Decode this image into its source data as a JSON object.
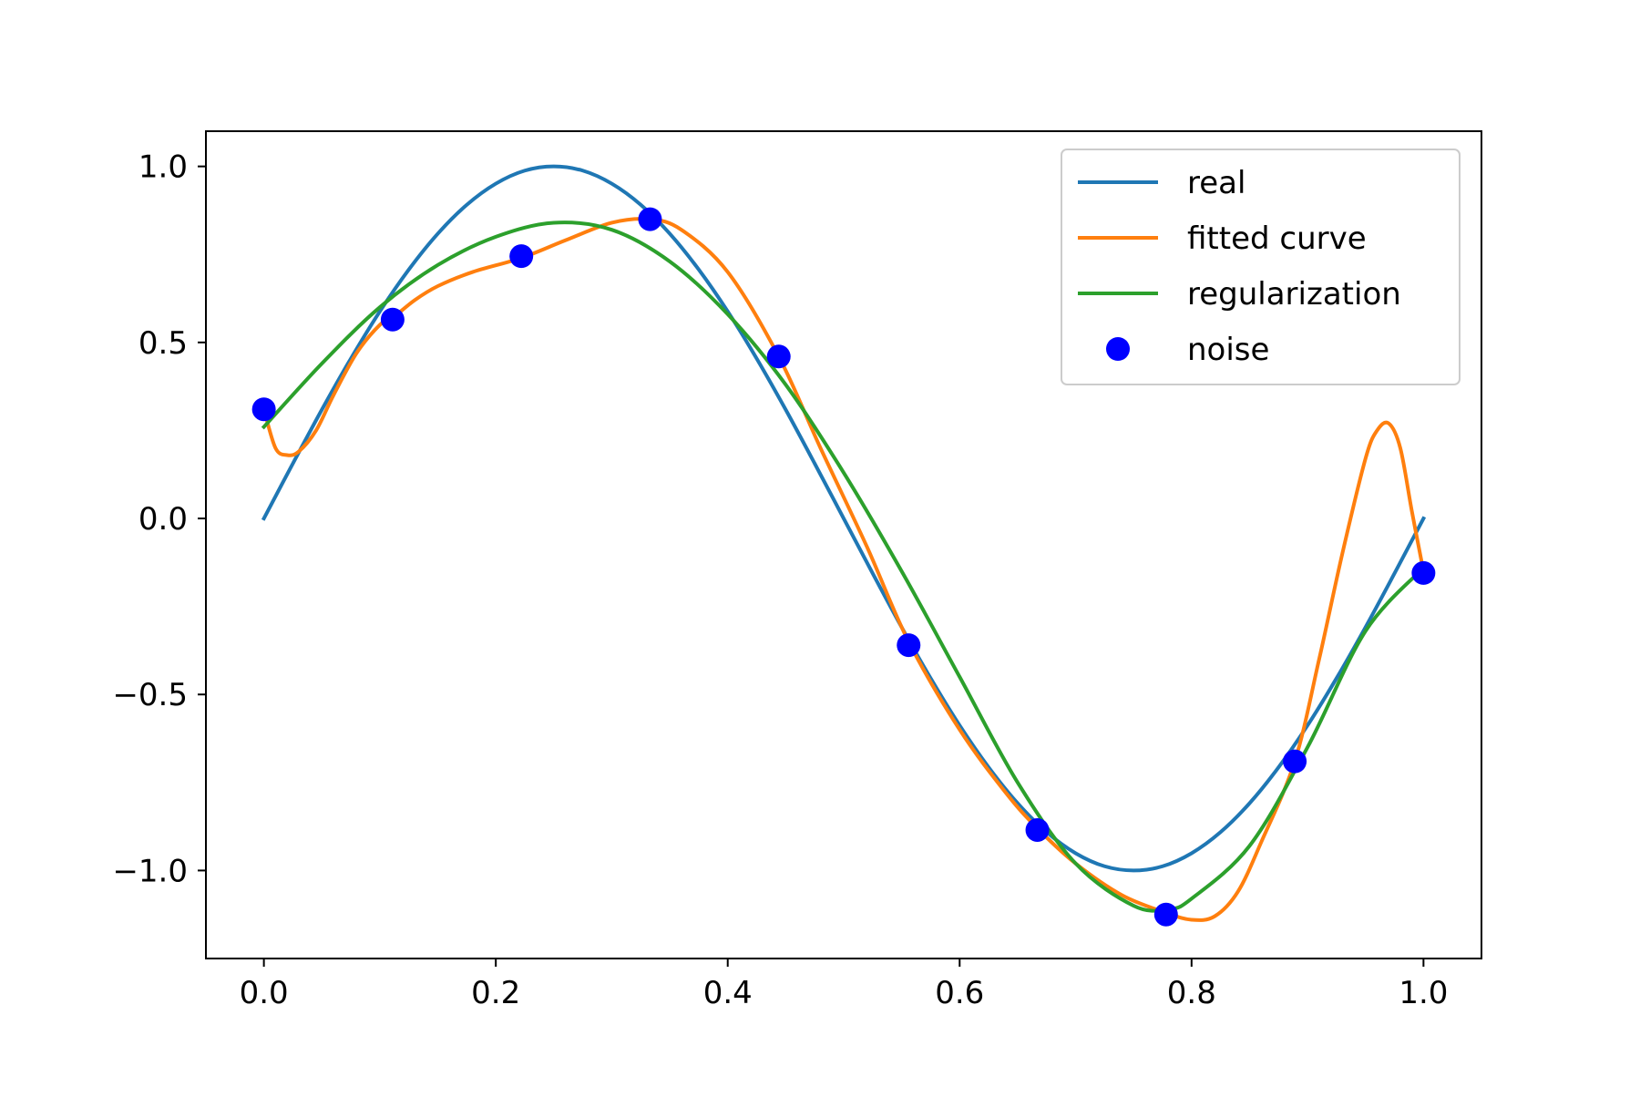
{
  "chart_data": {
    "type": "line",
    "title": "",
    "xlabel": "",
    "ylabel": "",
    "xlim": [
      -0.05,
      1.05
    ],
    "ylim": [
      -1.25,
      1.1
    ],
    "xticks": [
      {
        "value": 0.0,
        "label": "0.0"
      },
      {
        "value": 0.2,
        "label": "0.2"
      },
      {
        "value": 0.4,
        "label": "0.4"
      },
      {
        "value": 0.6,
        "label": "0.6"
      },
      {
        "value": 0.8,
        "label": "0.8"
      },
      {
        "value": 1.0,
        "label": "1.0"
      }
    ],
    "yticks": [
      {
        "value": 1.0,
        "label": "1.0"
      },
      {
        "value": 0.5,
        "label": "0.5"
      },
      {
        "value": 0.0,
        "label": "0.0"
      },
      {
        "value": -0.5,
        "label": "−0.5"
      },
      {
        "value": -1.0,
        "label": "−1.0"
      }
    ],
    "grid": false,
    "legend_position": "top-right",
    "series": [
      {
        "name": "real",
        "kind": "line",
        "color": "#1f77b4",
        "x": [
          0.0,
          0.025,
          0.05,
          0.075,
          0.1,
          0.125,
          0.15,
          0.175,
          0.2,
          0.225,
          0.25,
          0.275,
          0.3,
          0.325,
          0.35,
          0.375,
          0.4,
          0.425,
          0.45,
          0.475,
          0.5,
          0.525,
          0.55,
          0.575,
          0.6,
          0.625,
          0.65,
          0.675,
          0.7,
          0.725,
          0.75,
          0.775,
          0.8,
          0.825,
          0.85,
          0.875,
          0.9,
          0.925,
          0.95,
          0.975,
          1.0
        ],
        "y": [
          0.0,
          0.156,
          0.309,
          0.454,
          0.588,
          0.707,
          0.809,
          0.891,
          0.951,
          0.988,
          1.0,
          0.988,
          0.951,
          0.891,
          0.809,
          0.707,
          0.588,
          0.454,
          0.309,
          0.156,
          0.0,
          -0.156,
          -0.309,
          -0.454,
          -0.588,
          -0.707,
          -0.809,
          -0.891,
          -0.951,
          -0.988,
          -1.0,
          -0.988,
          -0.951,
          -0.891,
          -0.809,
          -0.707,
          -0.588,
          -0.454,
          -0.309,
          -0.156,
          0.0
        ]
      },
      {
        "name": "fitted curve",
        "kind": "line",
        "color": "#ff7f0e",
        "x": [
          0.0,
          0.01,
          0.02,
          0.03,
          0.045,
          0.06,
          0.08,
          0.1,
          0.111,
          0.13,
          0.15,
          0.18,
          0.222,
          0.26,
          0.3,
          0.333,
          0.36,
          0.4,
          0.444,
          0.48,
          0.52,
          0.556,
          0.6,
          0.64,
          0.667,
          0.7,
          0.74,
          0.778,
          0.8,
          0.82,
          0.84,
          0.86,
          0.889,
          0.91,
          0.93,
          0.95,
          0.96,
          0.97,
          0.98,
          0.99,
          1.0
        ],
        "y": [
          0.31,
          0.2,
          0.18,
          0.19,
          0.25,
          0.35,
          0.47,
          0.55,
          0.57,
          0.62,
          0.66,
          0.7,
          0.74,
          0.79,
          0.84,
          0.85,
          0.82,
          0.7,
          0.46,
          0.2,
          -0.08,
          -0.35,
          -0.6,
          -0.78,
          -0.88,
          -0.98,
          -1.07,
          -1.12,
          -1.14,
          -1.13,
          -1.06,
          -0.92,
          -0.69,
          -0.4,
          -0.1,
          0.17,
          0.25,
          0.27,
          0.2,
          0.02,
          -0.15
        ]
      },
      {
        "name": "regularization",
        "kind": "line",
        "color": "#2ca02c",
        "x": [
          0.0,
          0.05,
          0.1,
          0.15,
          0.2,
          0.25,
          0.3,
          0.35,
          0.4,
          0.45,
          0.5,
          0.55,
          0.6,
          0.65,
          0.7,
          0.75,
          0.78,
          0.8,
          0.85,
          0.9,
          0.95,
          1.0
        ],
        "y": [
          0.26,
          0.44,
          0.6,
          0.72,
          0.8,
          0.84,
          0.82,
          0.73,
          0.58,
          0.38,
          0.13,
          -0.15,
          -0.45,
          -0.75,
          -0.98,
          -1.1,
          -1.11,
          -1.08,
          -0.93,
          -0.65,
          -0.32,
          -0.14
        ]
      },
      {
        "name": "noise",
        "kind": "scatter",
        "color": "#0000ff",
        "x": [
          0.0,
          0.111,
          0.222,
          0.333,
          0.444,
          0.556,
          0.667,
          0.778,
          0.889,
          1.0
        ],
        "y": [
          0.31,
          0.565,
          0.745,
          0.85,
          0.46,
          -0.36,
          -0.885,
          -1.125,
          -0.69,
          -0.155
        ]
      }
    ]
  }
}
